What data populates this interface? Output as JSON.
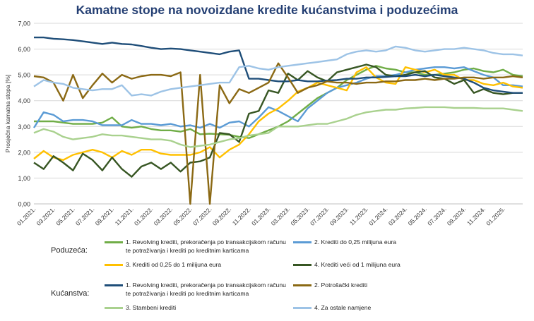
{
  "chart_data": {
    "type": "line",
    "title": "Kamatne stope na novoizdane kredite kućanstvima i poduzećima",
    "ylabel": "Prosječna kamatna stopa [%]",
    "xlabel": "",
    "ylim": [
      0,
      7
    ],
    "yticks": [
      "0,00",
      "1,00",
      "2,00",
      "3,00",
      "4,00",
      "5,00",
      "6,00",
      "7,00"
    ],
    "grid": true,
    "x_tick_labels": [
      "01.2021.",
      "03.2021.",
      "05.2021.",
      "07.2021.",
      "09.2021.",
      "11.2021.",
      "01.2022.",
      "03.2022.",
      "05.2022.",
      "07.2022.",
      "09.2022.",
      "11.2022.",
      "01.2023.",
      "03.2023.",
      "05.2023.",
      "07.2023.",
      "09.2023.",
      "11.2023.",
      "01.2024.",
      "03.2024.",
      "05.2024.",
      "07.2024.",
      "09.2024.",
      "11.2024.",
      "01.2025."
    ],
    "legend_groups": [
      {
        "label": "Poduzeća:",
        "series_index": [
          0,
          1,
          2,
          3
        ]
      },
      {
        "label": "Kućanstva:",
        "series_index": [
          4,
          5,
          6,
          7
        ]
      }
    ],
    "series": [
      {
        "name": "1. Revolving krediti, prekoračenja po transakcijskom računu te potraživanja i krediti po kreditnim karticama",
        "color": "#70ad47",
        "values": [
          3.2,
          3.2,
          3.2,
          3.15,
          3.1,
          3.1,
          3.1,
          3.15,
          3.35,
          3.0,
          2.95,
          3.0,
          2.9,
          2.85,
          2.85,
          2.8,
          2.9,
          2.7,
          2.72,
          2.7,
          2.68,
          2.6,
          2.55,
          2.7,
          2.85,
          3.0,
          3.2,
          3.5,
          3.8,
          4.1,
          4.3,
          4.5,
          4.8,
          5.0,
          5.2,
          5.35,
          5.25,
          5.2,
          5.1,
          5.1,
          5.0,
          5.0,
          5.05,
          5.1,
          5.2,
          5.25,
          5.15,
          5.1,
          5.2,
          5.0,
          4.95
        ]
      },
      {
        "name": "2. Krediti do 0,25 milijuna eura",
        "color": "#5b9bd5",
        "values": [
          2.95,
          3.55,
          3.45,
          3.2,
          3.25,
          3.25,
          3.2,
          3.05,
          3.05,
          3.05,
          3.25,
          3.1,
          3.1,
          3.05,
          3.1,
          3.0,
          3.05,
          2.95,
          3.1,
          2.95,
          3.15,
          3.2,
          3.0,
          3.35,
          3.75,
          3.6,
          3.4,
          3.2,
          3.7,
          4.0,
          4.3,
          4.5,
          4.6,
          4.7,
          4.85,
          4.95,
          4.95,
          5.0,
          5.1,
          5.2,
          5.25,
          5.3,
          5.3,
          5.25,
          5.3,
          5.15,
          5.0,
          4.9,
          4.6,
          4.6,
          4.55
        ]
      },
      {
        "name": "3. Krediti od 0,25 do 1 milijuna eura",
        "color": "#ffc000",
        "values": [
          1.75,
          2.05,
          1.8,
          1.7,
          1.9,
          2.0,
          2.1,
          2.0,
          1.8,
          2.05,
          1.9,
          2.1,
          2.1,
          1.95,
          1.9,
          1.9,
          1.9,
          2.0,
          2.2,
          1.8,
          2.1,
          2.3,
          2.7,
          3.2,
          3.5,
          3.7,
          4.0,
          4.35,
          4.5,
          4.7,
          4.6,
          4.5,
          4.4,
          5.1,
          5.3,
          4.9,
          4.7,
          4.65,
          5.3,
          5.2,
          5.1,
          5.2,
          5.0,
          5.0,
          4.8,
          4.8,
          4.65,
          4.6,
          4.7,
          4.55,
          4.5
        ]
      },
      {
        "name": "4. Krediti veći od 1 milijuna eura",
        "color": "#375623",
        "values": [
          1.6,
          1.35,
          1.85,
          1.6,
          1.3,
          1.95,
          1.7,
          1.3,
          1.8,
          1.35,
          1.05,
          1.45,
          1.6,
          1.35,
          1.6,
          1.25,
          1.6,
          1.65,
          1.8,
          2.75,
          2.7,
          2.4,
          3.5,
          3.6,
          4.4,
          4.3,
          5.05,
          4.8,
          5.15,
          4.9,
          4.75,
          5.1,
          5.2,
          5.3,
          5.4,
          5.3,
          5.0,
          4.95,
          5.0,
          5.1,
          5.15,
          4.9,
          4.85,
          4.65,
          4.8,
          4.3,
          4.45,
          4.3,
          4.25,
          4.3,
          4.3
        ]
      },
      {
        "name": "1. Revolving krediti, prekoračenja po transakcijskom računu te potraživanja i krediti po kreditnim karticama",
        "color": "#1f4e79",
        "values": [
          6.45,
          6.45,
          6.4,
          6.38,
          6.35,
          6.3,
          6.25,
          6.2,
          6.25,
          6.2,
          6.18,
          6.12,
          6.05,
          6.0,
          6.02,
          6.0,
          5.95,
          5.9,
          5.85,
          5.8,
          5.9,
          5.95,
          4.85,
          4.85,
          4.8,
          4.75,
          4.75,
          4.8,
          4.75,
          4.75,
          4.78,
          4.8,
          4.85,
          4.85,
          4.9,
          4.9,
          4.92,
          4.95,
          4.95,
          5.0,
          4.95,
          5.0,
          4.95,
          4.9,
          4.85,
          4.7,
          4.5,
          4.4,
          4.35,
          4.3,
          4.3
        ]
      },
      {
        "name": "2. Potrošački krediti",
        "color": "#8b6914",
        "values": [
          4.95,
          4.9,
          4.7,
          4.0,
          5.0,
          4.1,
          4.6,
          5.05,
          4.7,
          5.0,
          4.85,
          4.95,
          5.0,
          5.0,
          4.95,
          5.1,
          0.0,
          5.0,
          0.0,
          4.6,
          3.9,
          4.45,
          4.3,
          4.5,
          4.7,
          5.45,
          4.9,
          4.3,
          4.5,
          4.6,
          4.75,
          4.7,
          4.7,
          4.65,
          4.7,
          4.7,
          4.75,
          4.75,
          4.8,
          4.8,
          4.85,
          4.8,
          4.85,
          4.85,
          4.9,
          4.9,
          4.85,
          4.9,
          4.9,
          4.95,
          4.9
        ]
      },
      {
        "name": "3. Stambeni krediti",
        "color": "#a9d18e",
        "values": [
          2.75,
          2.9,
          2.8,
          2.6,
          2.5,
          2.55,
          2.6,
          2.7,
          2.65,
          2.65,
          2.6,
          2.55,
          2.5,
          2.5,
          2.45,
          2.3,
          2.2,
          2.25,
          2.3,
          2.4,
          2.5,
          2.55,
          2.65,
          2.7,
          2.75,
          3.0,
          3.0,
          3.0,
          3.05,
          3.1,
          3.1,
          3.2,
          3.3,
          3.45,
          3.55,
          3.6,
          3.65,
          3.65,
          3.7,
          3.72,
          3.75,
          3.75,
          3.75,
          3.72,
          3.72,
          3.72,
          3.7,
          3.7,
          3.7,
          3.65,
          3.6
        ]
      },
      {
        "name": "4. Za ostale namjene",
        "color": "#9dc3e6",
        "values": [
          4.55,
          4.8,
          4.7,
          4.65,
          4.5,
          4.45,
          4.4,
          4.45,
          4.45,
          4.6,
          4.2,
          4.25,
          4.2,
          4.35,
          4.45,
          4.5,
          4.55,
          4.6,
          4.65,
          4.7,
          4.7,
          5.3,
          5.35,
          5.25,
          5.2,
          5.3,
          5.35,
          5.4,
          5.45,
          5.5,
          5.55,
          5.6,
          5.8,
          5.9,
          5.95,
          5.9,
          5.95,
          6.1,
          6.05,
          5.95,
          5.9,
          5.95,
          6.0,
          6.0,
          6.05,
          6.0,
          5.95,
          5.85,
          5.8,
          5.8,
          5.75
        ]
      }
    ]
  }
}
